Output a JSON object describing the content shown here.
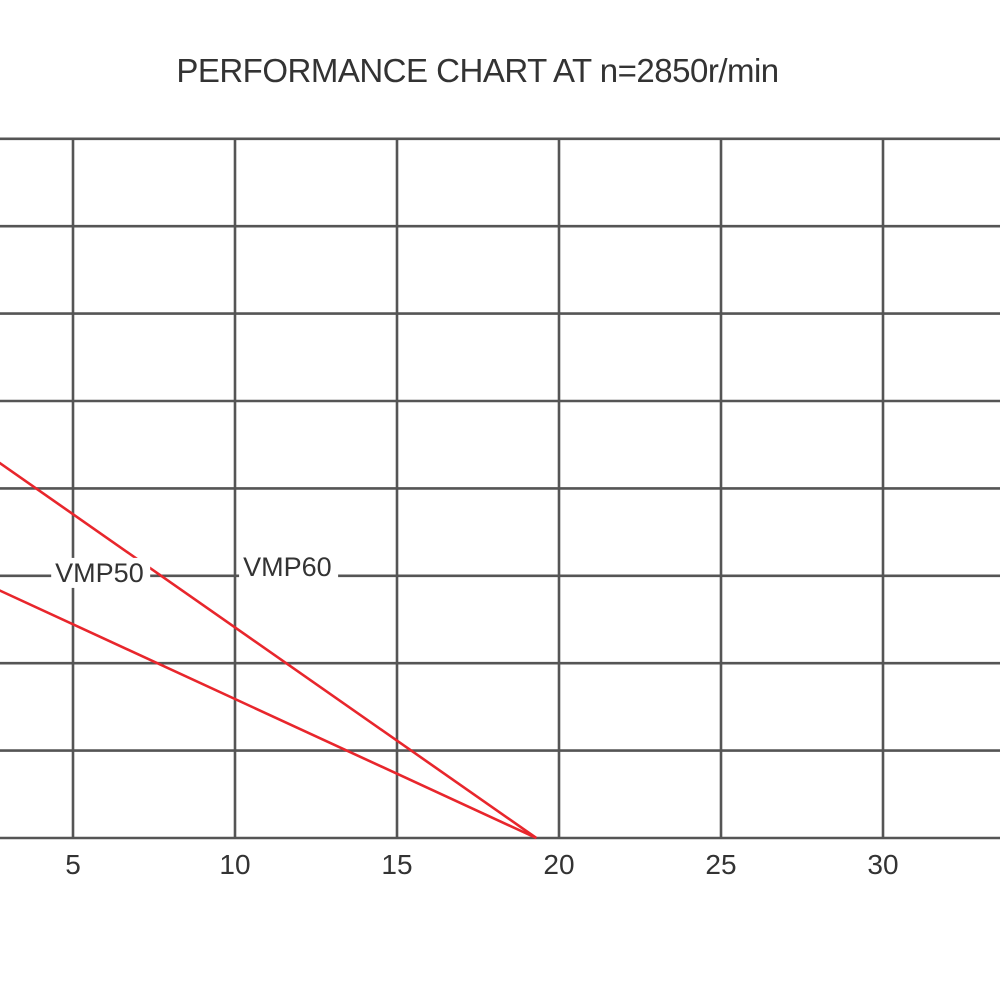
{
  "chart_data": {
    "type": "line",
    "title": "PERFORMANCE CHART AT n=2850r/min",
    "xlabel": "",
    "ylabel": "",
    "xlim": [
      0,
      37
    ],
    "ylim": [
      0,
      8
    ],
    "x_ticks": [
      5,
      10,
      15,
      20,
      25,
      30
    ],
    "y_gridlines": [
      1,
      2,
      3,
      4,
      5,
      6,
      7,
      8
    ],
    "grid": true,
    "line_color": "#e8262c",
    "series": [
      {
        "name": "VMP60",
        "x": [
          0,
          19.3
        ],
        "y": [
          5.0,
          0
        ]
      },
      {
        "name": "VMP50",
        "x": [
          0,
          19.3
        ],
        "y": [
          3.3,
          0
        ]
      }
    ]
  }
}
